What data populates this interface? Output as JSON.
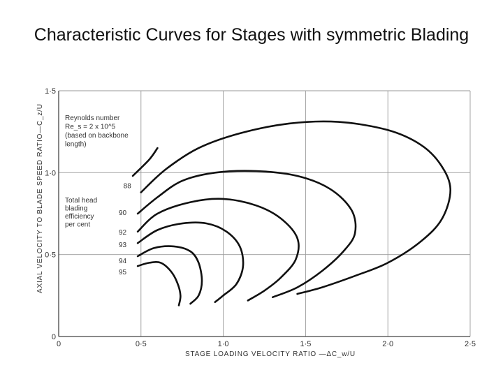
{
  "title": "Characteristic Curves for Stages with symmetric Blading",
  "chart_data": {
    "type": "line",
    "xlabel": "STAGE LOADING VELOCITY RATIO —ΔC_w/U",
    "ylabel": "AXIAL VELOCITY TO BLADE SPEED RATIO—C_z/U",
    "xlim": [
      0,
      2.5
    ],
    "ylim": [
      0,
      1.5
    ],
    "x_tick_labels": [
      "0",
      "0·5",
      "1·0",
      "1·5",
      "2·0",
      "2·5"
    ],
    "y_tick_labels": [
      "0",
      "0·5",
      "1·0",
      "1·5"
    ],
    "grid": true,
    "annotations": {
      "reynolds": [
        "Reynolds number",
        "Re_s = 2 x 10^5",
        "(based on backbone",
        "length)"
      ],
      "efficiency": [
        "Total head",
        "blading",
        "efficiency",
        "per cent"
      ]
    },
    "series": [
      {
        "name": "88",
        "points": [
          [
            0.45,
            0.98
          ],
          [
            0.55,
            1.08
          ],
          [
            0.6,
            1.15
          ]
        ]
      },
      {
        "name": "88",
        "points": [
          [
            0.5,
            0.88
          ],
          [
            0.65,
            1.02
          ],
          [
            0.85,
            1.15
          ],
          [
            1.1,
            1.24
          ],
          [
            1.4,
            1.3
          ],
          [
            1.7,
            1.31
          ],
          [
            2.0,
            1.26
          ],
          [
            2.2,
            1.17
          ],
          [
            2.32,
            1.05
          ],
          [
            2.38,
            0.9
          ],
          [
            2.33,
            0.72
          ],
          [
            2.2,
            0.58
          ],
          [
            2.0,
            0.45
          ],
          [
            1.8,
            0.37
          ],
          [
            1.6,
            0.3
          ],
          [
            1.45,
            0.26
          ]
        ]
      },
      {
        "name": "90",
        "points": [
          [
            0.48,
            0.75
          ],
          [
            0.6,
            0.85
          ],
          [
            0.75,
            0.95
          ],
          [
            0.95,
            1.0
          ],
          [
            1.2,
            1.01
          ],
          [
            1.45,
            0.98
          ],
          [
            1.65,
            0.9
          ],
          [
            1.78,
            0.77
          ],
          [
            1.8,
            0.63
          ],
          [
            1.73,
            0.52
          ],
          [
            1.6,
            0.4
          ],
          [
            1.45,
            0.3
          ],
          [
            1.3,
            0.24
          ]
        ]
      },
      {
        "name": "92",
        "points": [
          [
            0.48,
            0.64
          ],
          [
            0.6,
            0.75
          ],
          [
            0.8,
            0.82
          ],
          [
            1.0,
            0.84
          ],
          [
            1.2,
            0.8
          ],
          [
            1.35,
            0.72
          ],
          [
            1.45,
            0.6
          ],
          [
            1.44,
            0.47
          ],
          [
            1.35,
            0.36
          ],
          [
            1.25,
            0.28
          ],
          [
            1.15,
            0.22
          ]
        ]
      },
      {
        "name": "93",
        "points": [
          [
            0.48,
            0.57
          ],
          [
            0.6,
            0.65
          ],
          [
            0.75,
            0.69
          ],
          [
            0.9,
            0.69
          ],
          [
            1.02,
            0.64
          ],
          [
            1.1,
            0.55
          ],
          [
            1.12,
            0.43
          ],
          [
            1.08,
            0.32
          ],
          [
            1.0,
            0.25
          ],
          [
            0.95,
            0.21
          ]
        ]
      },
      {
        "name": "94",
        "points": [
          [
            0.48,
            0.49
          ],
          [
            0.58,
            0.54
          ],
          [
            0.7,
            0.55
          ],
          [
            0.8,
            0.52
          ],
          [
            0.85,
            0.45
          ],
          [
            0.87,
            0.34
          ],
          [
            0.85,
            0.25
          ],
          [
            0.8,
            0.2
          ]
        ]
      },
      {
        "name": "95",
        "points": [
          [
            0.48,
            0.43
          ],
          [
            0.55,
            0.45
          ],
          [
            0.62,
            0.45
          ],
          [
            0.68,
            0.4
          ],
          [
            0.72,
            0.33
          ],
          [
            0.74,
            0.25
          ],
          [
            0.73,
            0.19
          ]
        ]
      }
    ]
  }
}
